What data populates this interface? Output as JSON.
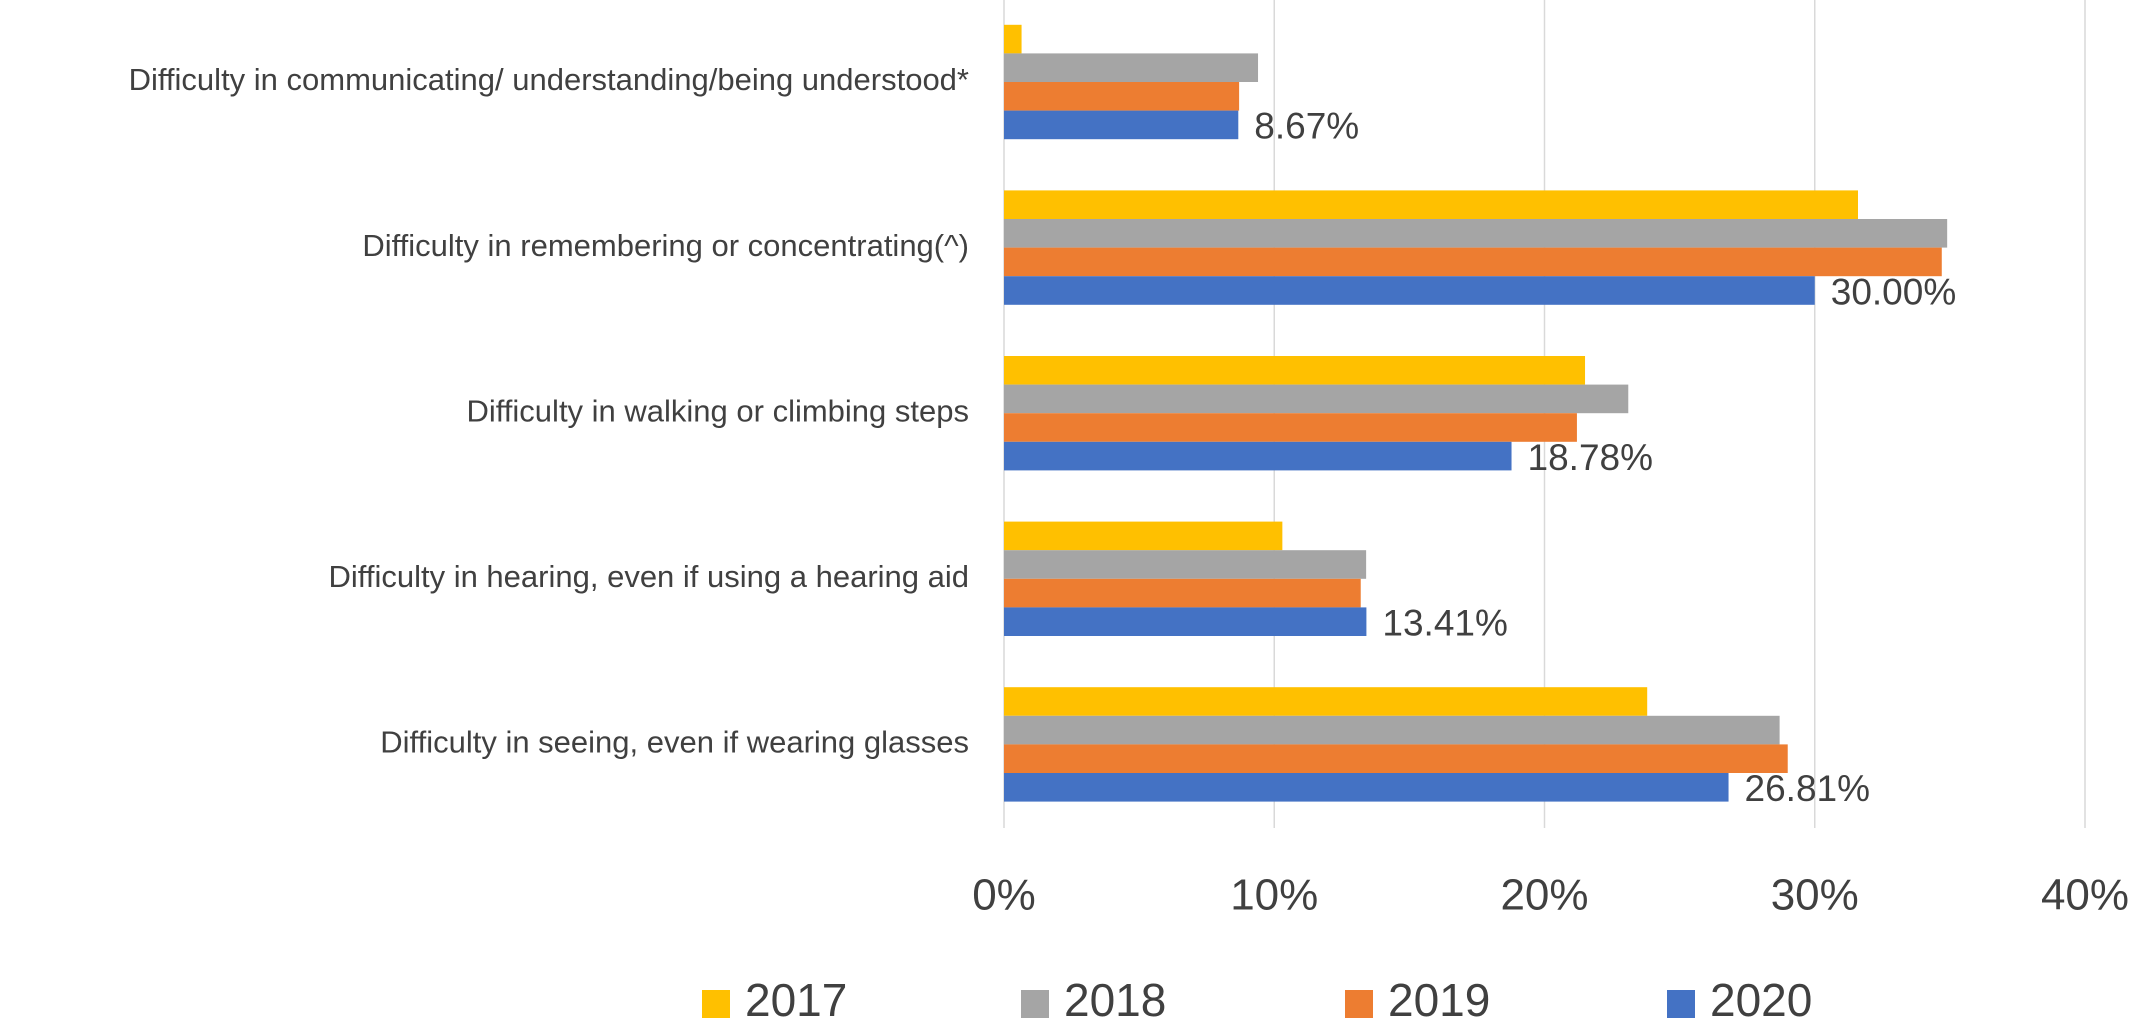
{
  "chart_data": {
    "type": "hbar",
    "categories": [
      "Difficulty in communicating/ understanding/being understood*",
      "Difficulty in remembering or concentrating(^)",
      "Difficulty in walking or climbing steps",
      "Difficulty in hearing, even if using a hearing aid",
      "Difficulty in seeing, even if wearing glasses"
    ],
    "series": [
      {
        "name": "2017",
        "color": "#ffc000",
        "values": [
          0.65,
          31.6,
          21.5,
          10.3,
          23.8
        ]
      },
      {
        "name": "2018",
        "color": "#a5a5a5",
        "values": [
          9.4,
          34.9,
          23.1,
          13.4,
          28.7
        ]
      },
      {
        "name": "2019",
        "color": "#ed7d31",
        "values": [
          8.7,
          34.7,
          21.2,
          13.2,
          29.0
        ]
      },
      {
        "name": "2020",
        "color": "#4472c4",
        "values": [
          8.67,
          30.0,
          18.78,
          13.41,
          26.81
        ],
        "value_labels": [
          "8.67%",
          "30.00%",
          "18.78%",
          "13.41%",
          "26.81%"
        ]
      }
    ],
    "xlim": [
      0,
      40
    ],
    "xticks": [
      {
        "value": 0,
        "label": "0%"
      },
      {
        "value": 10,
        "label": "10%"
      },
      {
        "value": 20,
        "label": "20%"
      },
      {
        "value": 30,
        "label": "30%"
      },
      {
        "value": 40,
        "label": "40%"
      }
    ],
    "grid": true,
    "legend": "bottom"
  }
}
